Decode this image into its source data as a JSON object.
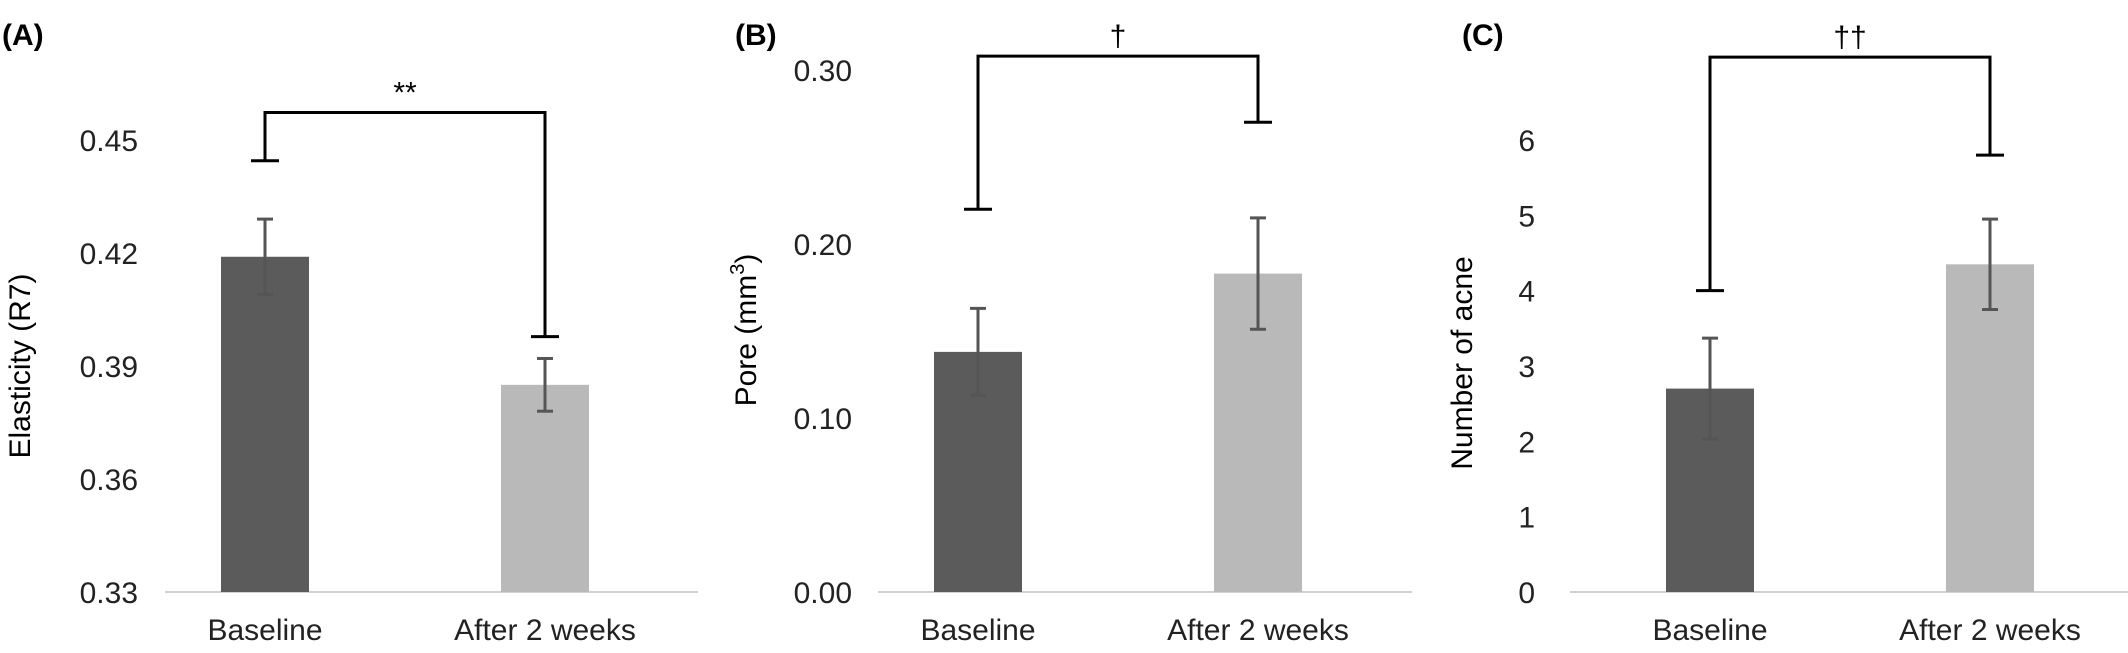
{
  "chart_data": [
    {
      "type": "bar",
      "panel": "(A)",
      "ylabel": "Elasticity (R7)",
      "ylabel_sup": "",
      "ylabel_suffix": "",
      "categories": [
        "Baseline",
        "After 2 weeks"
      ],
      "values": [
        0.419,
        0.385
      ],
      "errors": [
        0.01,
        0.007
      ],
      "colors": [
        "#5b5b5b",
        "#b9b9b9"
      ],
      "ylim": [
        0.33,
        0.45
      ],
      "yticks": [
        0.33,
        0.36,
        0.39,
        0.42,
        0.45
      ],
      "yticklabels": [
        "0.33",
        "0.36",
        "0.39",
        "0.42",
        "0.45"
      ],
      "bracket": {
        "top": 0.4573,
        "left_end": 0.4445,
        "right_end": 0.3978,
        "label": "**"
      }
    },
    {
      "type": "bar",
      "panel": "(B)",
      "ylabel": "Pore (mm",
      "ylabel_sup": "3",
      "ylabel_suffix": ")",
      "categories": [
        "Baseline",
        "After 2 weeks"
      ],
      "values": [
        0.138,
        0.183
      ],
      "errors": [
        0.025,
        0.032
      ],
      "colors": [
        "#5b5b5b",
        "#b9b9b9"
      ],
      "ylim": [
        0.0,
        0.3
      ],
      "yticks": [
        0.0,
        0.1,
        0.2,
        0.3
      ],
      "yticklabels": [
        "0.00",
        "0.10",
        "0.20",
        "0.30"
      ],
      "bracket": {
        "top": 0.308,
        "left_end": 0.22,
        "right_end": 0.27,
        "label": "†"
      }
    },
    {
      "type": "bar",
      "panel": "(C)",
      "ylabel": "Number of acne",
      "ylabel_sup": "",
      "ylabel_suffix": "",
      "categories": [
        "Baseline",
        "After 2 weeks"
      ],
      "values": [
        2.7,
        4.35
      ],
      "errors": [
        0.67,
        0.6
      ],
      "colors": [
        "#5b5b5b",
        "#b9b9b9"
      ],
      "ylim": [
        0,
        6
      ],
      "yticks": [
        0,
        1,
        2,
        3,
        4,
        5,
        6
      ],
      "yticklabels": [
        "0",
        "1",
        "2",
        "3",
        "4",
        "5",
        "6"
      ],
      "bracket": {
        "top": 7.1,
        "left_end": 4.0,
        "right_end": 5.8,
        "label": "††"
      }
    }
  ]
}
